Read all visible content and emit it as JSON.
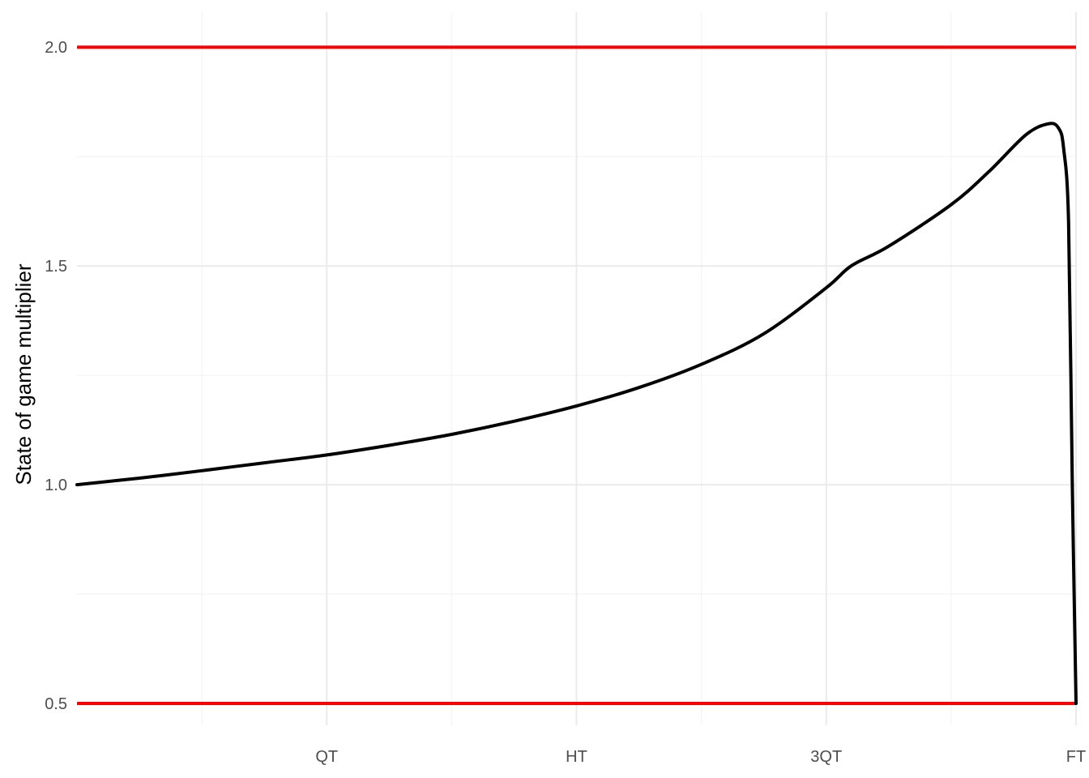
{
  "chart_data": {
    "type": "line",
    "title": "",
    "xlabel": "",
    "ylabel": "State of game multiplier",
    "xlim": [
      0,
      4
    ],
    "ylim": [
      0.45,
      2.08
    ],
    "x_ticks": [
      {
        "value": 1,
        "label": "QT"
      },
      {
        "value": 2,
        "label": "HT"
      },
      {
        "value": 3,
        "label": "3QT"
      },
      {
        "value": 4,
        "label": "FT"
      }
    ],
    "y_ticks": [
      {
        "value": 0.5,
        "label": "0.5"
      },
      {
        "value": 1.0,
        "label": "1.0"
      },
      {
        "value": 1.5,
        "label": "1.5"
      },
      {
        "value": 2.0,
        "label": "2.0"
      }
    ],
    "grid": true,
    "reference_lines": [
      {
        "y": 2.0,
        "color": "#ff0000"
      },
      {
        "y": 0.5,
        "color": "#ff0000"
      }
    ],
    "series": [
      {
        "color": "#000000",
        "x": [
          0,
          0.25,
          0.5,
          0.75,
          1.0,
          1.25,
          1.5,
          1.75,
          2.0,
          2.25,
          2.5,
          2.75,
          3.0,
          3.1,
          3.25,
          3.5,
          3.65,
          3.8,
          3.89,
          3.93,
          3.95,
          3.97,
          3.985,
          4.0
        ],
        "values": [
          1.0,
          1.015,
          1.032,
          1.05,
          1.068,
          1.09,
          1.115,
          1.145,
          1.18,
          1.222,
          1.275,
          1.345,
          1.45,
          1.5,
          1.545,
          1.64,
          1.715,
          1.8,
          1.825,
          1.815,
          1.77,
          1.6,
          1.0,
          0.5
        ]
      }
    ]
  }
}
